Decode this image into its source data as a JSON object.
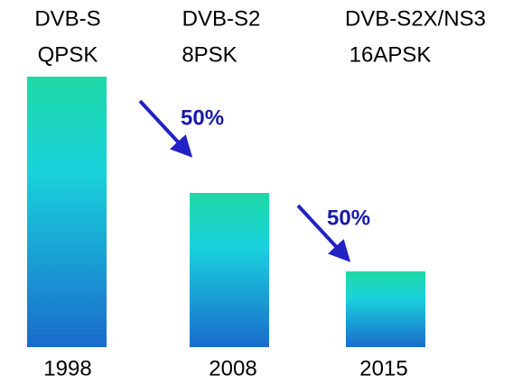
{
  "chart_data": {
    "type": "bar",
    "categories": [
      "1998",
      "2008",
      "2015"
    ],
    "labels": [
      [
        "DVB-S",
        "QPSK"
      ],
      [
        "DVB-S2",
        "8PSK"
      ],
      [
        "DVB-S2X/NS3",
        "16APSK"
      ]
    ],
    "values": [
      100,
      57,
      28
    ],
    "ylim": [
      0,
      100
    ],
    "annotations": [
      {
        "text": "50%"
      },
      {
        "text": "50%"
      }
    ]
  }
}
